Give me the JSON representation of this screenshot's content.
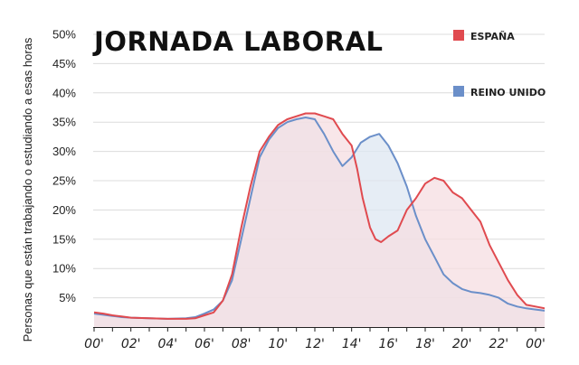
{
  "chart_data": {
    "type": "area",
    "title": "JORNADA LABORAL",
    "xlabel": "",
    "ylabel": "Personas que están trabajando o estudiando a esas horas",
    "ylim": [
      0,
      50
    ],
    "xlim": [
      0,
      24
    ],
    "y_ticks": [
      "5%",
      "10%",
      "15%",
      "20%",
      "25%",
      "30%",
      "35%",
      "40%",
      "45%",
      "50%"
    ],
    "y_tick_values": [
      5,
      10,
      15,
      20,
      25,
      30,
      35,
      40,
      45,
      50
    ],
    "x_ticks": [
      "00'",
      "02'",
      "04'",
      "06'",
      "08'",
      "10'",
      "12'",
      "14'",
      "16'",
      "18'",
      "20'",
      "22'",
      "00'"
    ],
    "x_tick_values": [
      0,
      2,
      4,
      6,
      8,
      10,
      12,
      14,
      16,
      18,
      20,
      22,
      24
    ],
    "grid": true,
    "legend_position": "right",
    "series": [
      {
        "name": "ESPAÑA",
        "color": "#e04a4f",
        "fill": "#f6dde2",
        "points": [
          [
            0,
            2.5
          ],
          [
            0.5,
            2.3
          ],
          [
            1,
            2.0
          ],
          [
            1.5,
            1.8
          ],
          [
            2,
            1.6
          ],
          [
            3,
            1.5
          ],
          [
            4,
            1.4
          ],
          [
            5,
            1.4
          ],
          [
            5.5,
            1.5
          ],
          [
            6,
            2.0
          ],
          [
            6.5,
            2.5
          ],
          [
            7,
            4.5
          ],
          [
            7.5,
            9
          ],
          [
            8,
            17
          ],
          [
            8.5,
            24
          ],
          [
            9,
            30
          ],
          [
            9.5,
            32.5
          ],
          [
            10,
            34.5
          ],
          [
            10.5,
            35.5
          ],
          [
            11,
            36
          ],
          [
            11.5,
            36.5
          ],
          [
            12,
            36.5
          ],
          [
            12.5,
            36
          ],
          [
            13,
            35.5
          ],
          [
            13.5,
            33
          ],
          [
            14,
            31
          ],
          [
            14.3,
            27
          ],
          [
            14.6,
            22
          ],
          [
            15,
            17
          ],
          [
            15.3,
            15
          ],
          [
            15.6,
            14.5
          ],
          [
            16,
            15.5
          ],
          [
            16.5,
            16.5
          ],
          [
            17,
            20
          ],
          [
            17.5,
            22
          ],
          [
            18,
            24.5
          ],
          [
            18.5,
            25.5
          ],
          [
            19,
            25
          ],
          [
            19.5,
            23
          ],
          [
            20,
            22
          ],
          [
            20.5,
            20
          ],
          [
            21,
            18
          ],
          [
            21.5,
            14
          ],
          [
            22,
            11
          ],
          [
            22.5,
            8
          ],
          [
            23,
            5.5
          ],
          [
            23.5,
            3.8
          ],
          [
            24,
            3.5
          ],
          [
            24.5,
            3.2
          ],
          [
            25,
            2.8
          ]
        ]
      },
      {
        "name": "REINO UNIDO",
        "color": "#6b8fc9",
        "fill": "#dde7f2",
        "points": [
          [
            0,
            2.3
          ],
          [
            0.5,
            2.1
          ],
          [
            1,
            1.9
          ],
          [
            1.5,
            1.7
          ],
          [
            2,
            1.6
          ],
          [
            3,
            1.5
          ],
          [
            4,
            1.4
          ],
          [
            5,
            1.5
          ],
          [
            5.5,
            1.7
          ],
          [
            6,
            2.3
          ],
          [
            6.5,
            3.0
          ],
          [
            7,
            4.5
          ],
          [
            7.5,
            8
          ],
          [
            8,
            15
          ],
          [
            8.5,
            22
          ],
          [
            9,
            29
          ],
          [
            9.5,
            32
          ],
          [
            10,
            34
          ],
          [
            10.5,
            35
          ],
          [
            11,
            35.5
          ],
          [
            11.5,
            35.8
          ],
          [
            12,
            35.5
          ],
          [
            12.5,
            33
          ],
          [
            13,
            30
          ],
          [
            13.5,
            27.5
          ],
          [
            14,
            29
          ],
          [
            14.5,
            31.5
          ],
          [
            15,
            32.5
          ],
          [
            15.5,
            33
          ],
          [
            16,
            31
          ],
          [
            16.5,
            28
          ],
          [
            17,
            24
          ],
          [
            17.5,
            19
          ],
          [
            18,
            15
          ],
          [
            18.5,
            12
          ],
          [
            19,
            9
          ],
          [
            19.5,
            7.5
          ],
          [
            20,
            6.5
          ],
          [
            20.5,
            6
          ],
          [
            21,
            5.8
          ],
          [
            21.5,
            5.5
          ],
          [
            22,
            5
          ],
          [
            22.5,
            4
          ],
          [
            23,
            3.5
          ],
          [
            23.5,
            3.2
          ],
          [
            24,
            3.0
          ],
          [
            24.5,
            2.8
          ],
          [
            25,
            2.6
          ]
        ]
      }
    ]
  }
}
